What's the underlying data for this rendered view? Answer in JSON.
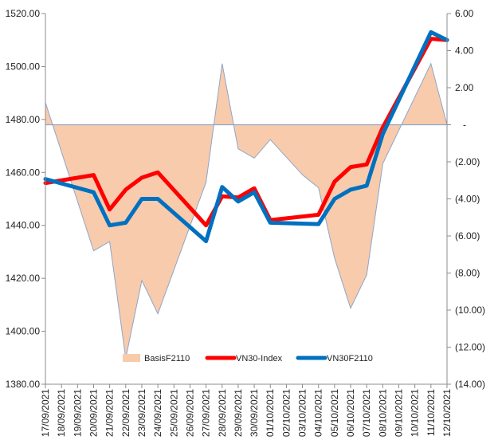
{
  "chart_data": {
    "type": "line",
    "categories": [
      "17/09/2021",
      "18/09/2021",
      "19/09/2021",
      "20/09/2021",
      "21/09/2021",
      "22/09/2021",
      "23/09/2021",
      "24/09/2021",
      "25/09/2021",
      "26/09/2021",
      "27/09/2021",
      "28/09/2021",
      "29/09/2021",
      "30/09/2021",
      "01/10/2021",
      "02/10/2021",
      "03/10/2021",
      "04/10/2021",
      "05/10/2021",
      "06/10/2021",
      "07/10/2021",
      "08/10/2021",
      "09/10/2021",
      "10/10/2021",
      "11/10/2021",
      "12/10/2021"
    ],
    "left_axis": {
      "ylim": [
        1380,
        1520
      ],
      "ticks": [
        "1380.00",
        "1400.00",
        "1420.00",
        "1440.00",
        "1460.00",
        "1480.00",
        "1500.00",
        "1520.00"
      ],
      "tick_values": [
        1380,
        1400,
        1420,
        1440,
        1460,
        1480,
        1500,
        1520
      ]
    },
    "right_axis": {
      "ylim": [
        -14,
        6
      ],
      "ticks": [
        "6.00",
        "4.00",
        "2.00",
        "-",
        "(2.00)",
        "(4.00)",
        "(6.00)",
        "(8.00)",
        "(10.00)",
        "(12.00)",
        "(14.00)"
      ],
      "tick_values": [
        6,
        4,
        2,
        0,
        -2,
        -4,
        -6,
        -8,
        -10,
        -12,
        -14
      ]
    },
    "series": [
      {
        "name": "BasisF2110",
        "type": "area",
        "axis": "right",
        "color": "#F8CBAD",
        "line_color": "#8EA5C8",
        "x": [
          0,
          3,
          4,
          5,
          6,
          7,
          10,
          11,
          12,
          13,
          14,
          16,
          17,
          18,
          19,
          20,
          21,
          24,
          25
        ],
        "values": [
          1.2,
          -6.8,
          -6.3,
          -12.6,
          -8.4,
          -10.2,
          -3.1,
          3.3,
          -1.3,
          -1.8,
          -0.8,
          -2.7,
          -3.4,
          -7.2,
          -9.9,
          -8.1,
          -2.1,
          3.3,
          0
        ]
      },
      {
        "name": "VN30-Index",
        "type": "line",
        "axis": "left",
        "color": "#FF0000",
        "x": [
          0,
          3,
          4,
          5,
          6,
          7,
          10,
          11,
          12,
          13,
          14,
          17,
          18,
          19,
          20,
          21,
          24,
          25
        ],
        "values": [
          1456,
          1459,
          1446,
          1453.5,
          1458,
          1460,
          1440,
          1451,
          1450.5,
          1454,
          1442,
          1444,
          1456.5,
          1462,
          1463,
          1477,
          1510.5,
          1510
        ]
      },
      {
        "name": "VN30F2110",
        "type": "line",
        "axis": "left",
        "color": "#0070C0",
        "x": [
          0,
          3,
          4,
          5,
          6,
          7,
          10,
          11,
          12,
          13,
          14,
          17,
          18,
          19,
          20,
          21,
          24,
          25
        ],
        "values": [
          1457.5,
          1452.5,
          1440,
          1441,
          1450,
          1450,
          1434,
          1454.5,
          1449,
          1452.5,
          1441,
          1440.5,
          1450,
          1453.5,
          1455,
          1474.5,
          1513,
          1510
        ]
      }
    ],
    "title": "",
    "xlabel": "",
    "ylabel": "",
    "grid": false,
    "legend_placement": "bottom-center",
    "reference_line": {
      "axis": "right",
      "value": 0,
      "color": "#8EA5C8"
    }
  }
}
